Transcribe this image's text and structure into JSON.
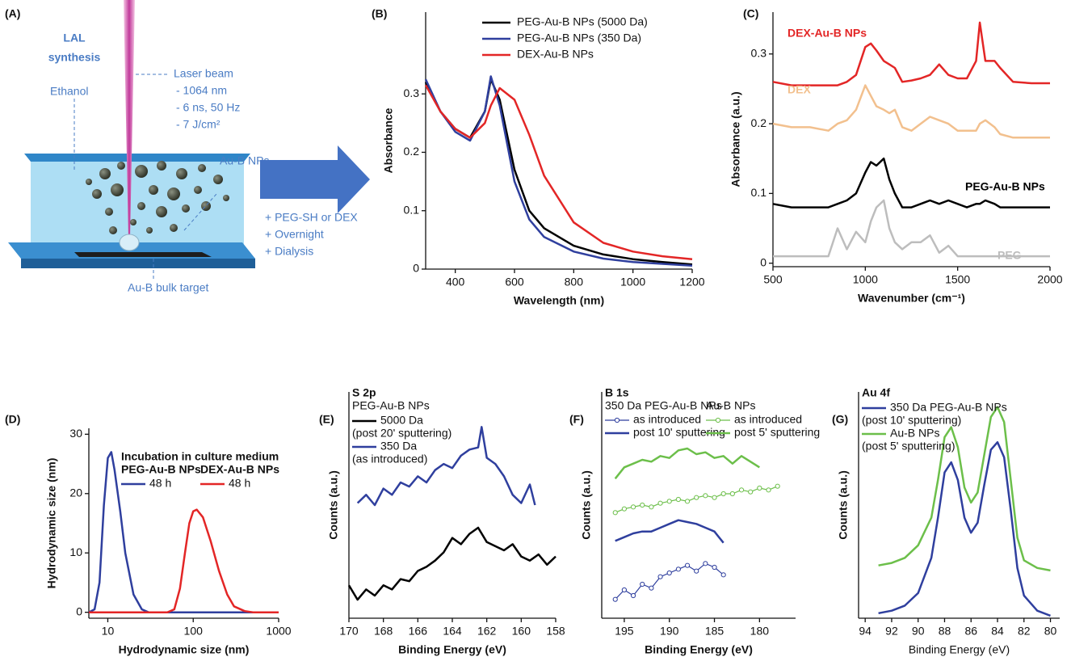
{
  "diagram": {
    "panel": "(A)",
    "title_lines": [
      "LAL",
      "synthesis"
    ],
    "ethanol": "Ethanol",
    "laser": [
      "Laser beam",
      "- 1064 nm",
      "- 6 ns, 50 Hz",
      "- 7 J/cm²"
    ],
    "particles": "Au-B NPs",
    "target": "Au-B bulk target",
    "steps": [
      "+  PEG-SH or DEX",
      "+  Overnight",
      "+  Dialysis"
    ]
  },
  "chart_data": [
    {
      "type": "line",
      "panel": "(B)",
      "x_label": "Wavelength (nm)",
      "y_label": "Absorbance",
      "xlim": [
        300,
        1200
      ],
      "xticks": [
        400,
        600,
        800,
        1000,
        1200
      ],
      "ylim": [
        0,
        0.44
      ],
      "yticks": [
        0,
        0.1,
        0.2,
        0.3
      ],
      "x": [
        300,
        350,
        400,
        450,
        500,
        520,
        550,
        600,
        650,
        700,
        800,
        900,
        1000,
        1100,
        1200
      ],
      "series": [
        {
          "name": "PEG-Au-B NPs (5000 Da)",
          "color": "#000000",
          "values": [
            0.32,
            0.27,
            0.24,
            0.225,
            0.27,
            0.325,
            0.29,
            0.17,
            0.1,
            0.07,
            0.04,
            0.025,
            0.017,
            0.012,
            0.008
          ]
        },
        {
          "name": "PEG-Au-B NPs (350 Da)",
          "color": "#2f3f9e",
          "values": [
            0.325,
            0.27,
            0.235,
            0.22,
            0.27,
            0.33,
            0.28,
            0.15,
            0.085,
            0.055,
            0.03,
            0.018,
            0.012,
            0.009,
            0.006
          ]
        },
        {
          "name": "DEX-Au-B NPs",
          "color": "#e32626",
          "values": [
            0.315,
            0.27,
            0.24,
            0.225,
            0.25,
            0.28,
            0.31,
            0.29,
            0.23,
            0.16,
            0.08,
            0.045,
            0.03,
            0.022,
            0.017
          ]
        }
      ]
    },
    {
      "type": "line",
      "panel": "(C)",
      "x_label": "Wavenumber (cm⁻¹)",
      "y_label": "Absorbance (a.u.)",
      "xlim": [
        500,
        2000
      ],
      "xticks": [
        500,
        1000,
        1500,
        2000
      ],
      "ylim": [
        -0.005,
        0.36
      ],
      "yticks": [
        0,
        0.1,
        0.2,
        0.3
      ],
      "x": [
        500,
        600,
        700,
        800,
        850,
        900,
        950,
        1000,
        1030,
        1060,
        1100,
        1130,
        1160,
        1200,
        1250,
        1300,
        1350,
        1400,
        1450,
        1500,
        1550,
        1600,
        1620,
        1650,
        1700,
        1730,
        1800,
        1900,
        2000
      ],
      "series": [
        {
          "name": "DEX-Au-B NPs",
          "color": "#e32626",
          "values": [
            0.26,
            0.255,
            0.255,
            0.255,
            0.255,
            0.26,
            0.27,
            0.31,
            0.315,
            0.305,
            0.29,
            0.285,
            0.28,
            0.26,
            0.262,
            0.265,
            0.27,
            0.285,
            0.27,
            0.265,
            0.265,
            0.29,
            0.345,
            0.29,
            0.29,
            0.28,
            0.26,
            0.258,
            0.258
          ]
        },
        {
          "name": "DEX",
          "color": "#f2c08e",
          "values": [
            0.2,
            0.195,
            0.195,
            0.19,
            0.2,
            0.205,
            0.22,
            0.255,
            0.24,
            0.225,
            0.22,
            0.215,
            0.22,
            0.195,
            0.19,
            0.2,
            0.21,
            0.205,
            0.2,
            0.19,
            0.19,
            0.19,
            0.2,
            0.205,
            0.195,
            0.185,
            0.18,
            0.18,
            0.18
          ]
        },
        {
          "name": "PEG-Au-B NPs",
          "color": "#000000",
          "values": [
            0.085,
            0.08,
            0.08,
            0.08,
            0.085,
            0.09,
            0.1,
            0.13,
            0.145,
            0.14,
            0.15,
            0.12,
            0.1,
            0.08,
            0.08,
            0.085,
            0.09,
            0.085,
            0.09,
            0.085,
            0.08,
            0.085,
            0.085,
            0.09,
            0.085,
            0.08,
            0.08,
            0.08,
            0.08
          ]
        },
        {
          "name": "PEG",
          "color": "#bdbdbd",
          "values": [
            0.01,
            0.01,
            0.01,
            0.01,
            0.05,
            0.02,
            0.045,
            0.03,
            0.06,
            0.08,
            0.09,
            0.05,
            0.03,
            0.02,
            0.03,
            0.03,
            0.04,
            0.015,
            0.025,
            0.01,
            0.01,
            0.01,
            0.01,
            0.01,
            0.01,
            0.01,
            0.01,
            0.01,
            0.01
          ]
        }
      ]
    },
    {
      "type": "line",
      "panel": "(D)",
      "x_label": "Hydrodynamic size (nm)",
      "y_label": "Hydrodynamic size (nm)",
      "xlog": true,
      "xlim": [
        6,
        1000
      ],
      "xticks": [
        10,
        100,
        1000
      ],
      "ylim": [
        -1,
        31
      ],
      "yticks": [
        0,
        10,
        20,
        30
      ],
      "legend_title": "Incubation in culture medium",
      "legend_groups": [
        "PEG-Au-B NPs",
        "DEX-Au-B NPs"
      ],
      "series": [
        {
          "name": "48 h",
          "color": "#2f3f9e",
          "x": [
            6,
            7,
            8,
            9,
            10,
            11,
            12,
            14,
            16,
            20,
            25,
            30,
            40,
            100,
            1000
          ],
          "values": [
            0,
            0.5,
            5,
            18,
            26,
            27,
            24,
            17,
            10,
            3,
            0.5,
            0,
            0,
            0,
            0
          ]
        },
        {
          "name": "48 h",
          "color": "#e32626",
          "x": [
            6,
            50,
            60,
            70,
            80,
            90,
            100,
            110,
            130,
            160,
            200,
            250,
            300,
            400,
            500,
            1000
          ],
          "values": [
            0,
            0,
            0.5,
            4,
            10,
            15,
            17,
            17.3,
            16,
            12,
            7,
            3,
            1,
            0.2,
            0,
            0
          ]
        }
      ]
    },
    {
      "type": "line",
      "panel": "(E)",
      "annotation": "S 2p",
      "x_label": "Binding Energy (eV)",
      "y_label": "Counts (a.u.)",
      "xlim": [
        170,
        158
      ],
      "xticks": [
        170,
        168,
        166,
        164,
        162,
        160,
        158
      ],
      "ylim": [
        0,
        11
      ],
      "legend_title": "PEG-Au-B NPs",
      "series": [
        {
          "name": "5000 Da",
          "note": "(post 20' sputtering)",
          "color": "#000000",
          "x": [
            170,
            169.5,
            169,
            168.5,
            168,
            167.5,
            167,
            166.5,
            166,
            165.5,
            165,
            164.5,
            164,
            163.5,
            163,
            162.5,
            162,
            161.5,
            161,
            160.5,
            160,
            159.5,
            159,
            158.5,
            158
          ],
          "values": [
            1.6,
            0.9,
            1.4,
            1.1,
            1.6,
            1.4,
            1.9,
            1.8,
            2.3,
            2.5,
            2.8,
            3.2,
            3.9,
            3.6,
            4.1,
            4.4,
            3.7,
            3.5,
            3.3,
            3.6,
            3.0,
            2.8,
            3.1,
            2.6,
            3.0
          ]
        },
        {
          "name": "350 Da",
          "note": "(as introduced)",
          "color": "#2f3f9e",
          "x": [
            169.5,
            169,
            168.5,
            168,
            167.5,
            167,
            166.5,
            166,
            165.5,
            165,
            164.5,
            164,
            163.5,
            163,
            162.5,
            162.3,
            162,
            161.5,
            161,
            160.5,
            160,
            159.5,
            159.2
          ],
          "values": [
            5.6,
            6.0,
            5.5,
            6.3,
            6.0,
            6.6,
            6.4,
            6.9,
            6.6,
            7.2,
            7.5,
            7.3,
            7.9,
            8.2,
            8.3,
            9.3,
            7.8,
            7.5,
            6.9,
            6.0,
            5.6,
            6.5,
            5.5
          ]
        }
      ]
    },
    {
      "type": "line",
      "panel": "(F)",
      "annotation": "B 1s",
      "x_label": "Binding Energy (eV)",
      "y_label": "Counts (a.u.)",
      "xlim": [
        197.5,
        176
      ],
      "xticks": [
        195,
        190,
        185,
        180
      ],
      "ylim": [
        0,
        12
      ],
      "legend_groups": [
        "350 Da PEG-Au-B NPs",
        "Au-B NPs"
      ],
      "series": [
        {
          "name": "as introduced",
          "color": "#2f3f9e",
          "marker": "circle",
          "x": [
            196,
            195,
            194,
            193,
            192,
            191,
            190,
            189,
            188,
            187,
            186,
            185,
            184
          ],
          "values": [
            1.0,
            1.5,
            1.2,
            1.8,
            1.6,
            2.2,
            2.4,
            2.6,
            2.8,
            2.5,
            2.9,
            2.7,
            2.3
          ]
        },
        {
          "name": "post 10' sputtering",
          "color": "#2f3f9e",
          "x": [
            196,
            195,
            194,
            193,
            192,
            191,
            190,
            189,
            188,
            187,
            186,
            185,
            184
          ],
          "values": [
            4.1,
            4.3,
            4.5,
            4.6,
            4.6,
            4.8,
            5.0,
            5.2,
            5.1,
            5.0,
            4.8,
            4.6,
            4.0
          ]
        },
        {
          "name": "as introduced",
          "color": "#6cbf4a",
          "marker": "circle",
          "x": [
            196,
            195,
            194,
            193,
            192,
            191,
            190,
            189,
            188,
            187,
            186,
            185,
            184,
            183,
            182,
            181,
            180,
            179,
            178
          ],
          "values": [
            5.6,
            5.8,
            5.9,
            6.0,
            5.9,
            6.1,
            6.2,
            6.3,
            6.2,
            6.4,
            6.5,
            6.4,
            6.6,
            6.6,
            6.8,
            6.7,
            6.9,
            6.8,
            7.0
          ]
        },
        {
          "name": "post 5' sputtering",
          "color": "#6cbf4a",
          "x": [
            196,
            195,
            194,
            193,
            192,
            191,
            190,
            189,
            188,
            187,
            186,
            185,
            184,
            183,
            182,
            181,
            180
          ],
          "values": [
            7.4,
            8.0,
            8.2,
            8.4,
            8.3,
            8.6,
            8.5,
            8.9,
            9.0,
            8.7,
            8.8,
            8.5,
            8.6,
            8.2,
            8.6,
            8.3,
            8.0
          ]
        }
      ]
    },
    {
      "type": "line",
      "panel": "(G)",
      "annotation": "Au 4f",
      "x_label": "Binding Energy (eV)",
      "y_label": "Counts (a.u.)",
      "xlim": [
        94.5,
        79.3
      ],
      "xticks": [
        94,
        92,
        90,
        88,
        86,
        84,
        82,
        80
      ],
      "ylim": [
        0,
        9
      ],
      "x": [
        93,
        92,
        91,
        90,
        89,
        88.5,
        88,
        87.5,
        87,
        86.5,
        86,
        85.5,
        85,
        84.5,
        84,
        83.5,
        83,
        82.5,
        82,
        81,
        80
      ],
      "series": [
        {
          "name": "350 Da PEG-Au-B NPs",
          "note": "(post 10' sputtering)",
          "color": "#2f3f9e",
          "values": [
            0.2,
            0.3,
            0.5,
            1.0,
            2.4,
            4.0,
            5.8,
            6.2,
            5.5,
            4.0,
            3.4,
            3.8,
            5.3,
            6.7,
            7.0,
            6.4,
            4.3,
            2.0,
            0.9,
            0.3,
            0.1
          ]
        },
        {
          "name": "Au-B NPs",
          "note": "(post 5' sputtering)",
          "color": "#6cbf4a",
          "values": [
            2.1,
            2.2,
            2.4,
            2.9,
            4.0,
            5.5,
            7.2,
            7.6,
            6.8,
            5.2,
            4.6,
            5.0,
            6.5,
            8.0,
            8.4,
            7.8,
            5.5,
            3.2,
            2.3,
            2.0,
            1.9
          ]
        }
      ]
    }
  ]
}
